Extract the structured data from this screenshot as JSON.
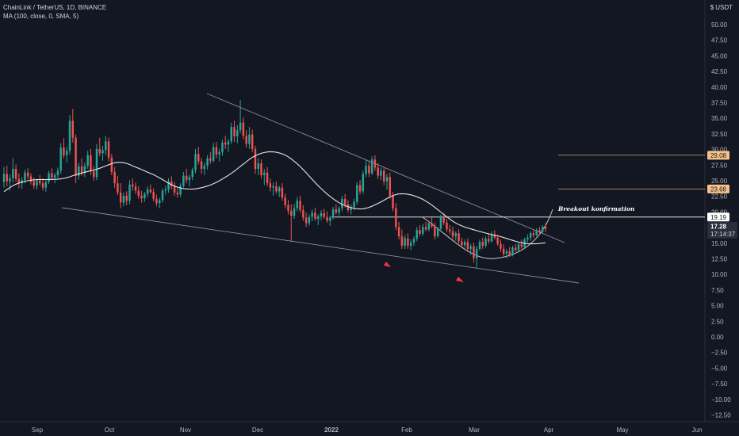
{
  "header": {
    "symbol_line": "ChainLink / TetherUS, 1D, BINANCE",
    "indicator_line": "MA (100, close, 0, SMA, 5)",
    "currency_label": "USDT",
    "currency_prefix": "$"
  },
  "chart_data": {
    "type": "candlestick",
    "price_axis_ticks": [
      "50.00",
      "47.50",
      "45.00",
      "42.50",
      "40.00",
      "37.50",
      "35.00",
      "32.50",
      "30.00",
      "27.50",
      "25.00",
      "22.50",
      "20.00",
      "17.50",
      "15.00",
      "12.50",
      "10.00",
      "7.50",
      "5.00",
      "2.50",
      "0.00",
      "−2.50",
      "−5.00",
      "−7.50",
      "−10.00",
      "−12.50"
    ],
    "ylim": [
      -13.5,
      53.5
    ],
    "time_axis_labels": [
      "Sep",
      "Oct",
      "Nov",
      "Dec",
      "2022",
      "Feb",
      "Mar",
      "Apr",
      "May",
      "Jun"
    ],
    "price_tags": [
      {
        "label": "29.08",
        "value": 29.08,
        "style": "orange"
      },
      {
        "label": "23.68",
        "value": 23.68,
        "style": "orange"
      },
      {
        "label": "19.19",
        "value": 19.19,
        "style": "white"
      }
    ],
    "last_price": {
      "label": "17.28",
      "countdown": "17:14:37",
      "value": 17.28
    },
    "annotation": "Breakout konfirmation",
    "candles_ohlc": [
      [
        24.8,
        27.2,
        23.9,
        26.1
      ],
      [
        26.1,
        27.4,
        24.1,
        24.9
      ],
      [
        24.9,
        26.0,
        23.4,
        25.4
      ],
      [
        25.4,
        28.6,
        24.7,
        26.9
      ],
      [
        26.9,
        27.6,
        24.9,
        25.3
      ],
      [
        25.3,
        26.2,
        23.8,
        24.6
      ],
      [
        24.6,
        25.6,
        23.7,
        25.1
      ],
      [
        25.1,
        26.8,
        24.6,
        26.3
      ],
      [
        26.3,
        27.0,
        25.2,
        25.7
      ],
      [
        25.7,
        26.2,
        24.4,
        24.9
      ],
      [
        24.9,
        25.5,
        23.7,
        24.2
      ],
      [
        24.2,
        25.3,
        23.6,
        25.0
      ],
      [
        25.0,
        25.9,
        24.2,
        24.6
      ],
      [
        24.6,
        25.4,
        23.4,
        23.9
      ],
      [
        23.9,
        25.1,
        23.2,
        24.8
      ],
      [
        24.8,
        26.6,
        24.5,
        26.2
      ],
      [
        26.2,
        27.0,
        25.1,
        25.5
      ],
      [
        25.5,
        26.3,
        24.6,
        25.9
      ],
      [
        25.9,
        27.1,
        25.4,
        26.6
      ],
      [
        26.6,
        31.0,
        26.1,
        30.3
      ],
      [
        30.3,
        31.8,
        28.6,
        29.1
      ],
      [
        29.1,
        30.4,
        27.9,
        29.8
      ],
      [
        29.8,
        35.5,
        29.2,
        34.6
      ],
      [
        34.6,
        36.5,
        31.1,
        31.9
      ],
      [
        31.9,
        32.4,
        24.6,
        25.8
      ],
      [
        25.8,
        27.9,
        25.2,
        27.3
      ],
      [
        27.3,
        28.6,
        25.8,
        26.3
      ],
      [
        26.3,
        27.9,
        25.6,
        27.4
      ],
      [
        27.4,
        29.8,
        26.9,
        29.1
      ],
      [
        29.1,
        30.1,
        25.9,
        26.5
      ],
      [
        26.5,
        27.4,
        25.0,
        25.6
      ],
      [
        25.6,
        30.9,
        25.1,
        30.1
      ],
      [
        30.1,
        31.9,
        28.9,
        29.4
      ],
      [
        29.4,
        30.6,
        28.2,
        29.9
      ],
      [
        29.9,
        32.2,
        29.1,
        31.3
      ],
      [
        31.3,
        31.9,
        28.1,
        28.7
      ],
      [
        28.7,
        29.3,
        25.9,
        26.4
      ],
      [
        26.4,
        27.2,
        23.9,
        24.6
      ],
      [
        24.6,
        25.8,
        22.7,
        23.1
      ],
      [
        23.1,
        24.6,
        20.6,
        21.5
      ],
      [
        21.5,
        23.1,
        20.9,
        22.6
      ],
      [
        22.6,
        23.3,
        21.1,
        21.8
      ],
      [
        21.8,
        25.1,
        21.2,
        24.4
      ],
      [
        24.4,
        25.4,
        23.4,
        24.1
      ],
      [
        24.1,
        24.7,
        22.9,
        23.4
      ],
      [
        23.4,
        24.1,
        22.1,
        22.6
      ],
      [
        22.6,
        23.4,
        21.5,
        22.2
      ],
      [
        22.2,
        23.2,
        21.6,
        22.9
      ],
      [
        22.9,
        24.1,
        22.4,
        23.6
      ],
      [
        23.6,
        24.4,
        22.9,
        23.2
      ],
      [
        23.2,
        23.8,
        21.7,
        22.1
      ],
      [
        22.1,
        22.8,
        20.9,
        21.4
      ],
      [
        21.4,
        22.3,
        20.6,
        21.9
      ],
      [
        21.9,
        23.8,
        21.5,
        23.4
      ],
      [
        23.4,
        24.2,
        22.8,
        23.6
      ],
      [
        23.6,
        25.4,
        23.1,
        24.9
      ],
      [
        24.9,
        25.7,
        23.6,
        24.1
      ],
      [
        24.1,
        24.8,
        22.6,
        23.1
      ],
      [
        23.1,
        23.8,
        22.3,
        22.8
      ],
      [
        22.8,
        24.6,
        22.4,
        24.2
      ],
      [
        24.2,
        26.4,
        23.9,
        25.8
      ],
      [
        25.8,
        26.9,
        24.6,
        25.1
      ],
      [
        25.1,
        26.0,
        24.1,
        25.6
      ],
      [
        25.6,
        27.1,
        25.1,
        26.7
      ],
      [
        26.7,
        30.1,
        26.2,
        29.3
      ],
      [
        29.3,
        30.4,
        27.6,
        28.1
      ],
      [
        28.1,
        28.6,
        26.1,
        26.9
      ],
      [
        26.9,
        27.9,
        25.9,
        27.4
      ],
      [
        27.4,
        29.1,
        26.8,
        28.6
      ],
      [
        28.6,
        29.6,
        27.7,
        28.2
      ],
      [
        28.2,
        31.1,
        27.9,
        30.4
      ],
      [
        30.4,
        31.2,
        28.6,
        29.2
      ],
      [
        29.2,
        30.1,
        28.1,
        29.6
      ],
      [
        29.6,
        31.6,
        29.0,
        31.1
      ],
      [
        31.1,
        32.2,
        30.1,
        30.8
      ],
      [
        30.8,
        31.7,
        29.6,
        31.3
      ],
      [
        31.3,
        34.3,
        30.9,
        33.6
      ],
      [
        33.6,
        34.6,
        31.2,
        32.1
      ],
      [
        32.1,
        33.9,
        31.0,
        33.1
      ],
      [
        33.1,
        37.9,
        32.6,
        34.3
      ],
      [
        34.3,
        35.1,
        31.6,
        32.2
      ],
      [
        32.2,
        33.1,
        30.3,
        30.9
      ],
      [
        30.9,
        33.6,
        30.1,
        32.4
      ],
      [
        32.4,
        33.2,
        29.6,
        30.1
      ],
      [
        30.1,
        30.6,
        26.1,
        26.9
      ],
      [
        26.9,
        28.6,
        25.9,
        27.8
      ],
      [
        27.8,
        28.4,
        25.4,
        25.9
      ],
      [
        25.9,
        26.9,
        24.3,
        26.3
      ],
      [
        26.3,
        27.2,
        24.1,
        24.6
      ],
      [
        24.6,
        25.4,
        23.3,
        23.9
      ],
      [
        23.9,
        24.7,
        22.6,
        24.1
      ],
      [
        24.1,
        24.9,
        22.9,
        23.3
      ],
      [
        23.3,
        24.2,
        22.4,
        23.9
      ],
      [
        23.9,
        24.6,
        21.8,
        22.3
      ],
      [
        22.3,
        22.9,
        20.6,
        21.1
      ],
      [
        21.1,
        21.9,
        19.6,
        20.2
      ],
      [
        20.2,
        21.2,
        15.2,
        19.4
      ],
      [
        19.4,
        21.3,
        18.9,
        20.6
      ],
      [
        20.6,
        22.4,
        20.1,
        21.8
      ],
      [
        21.8,
        22.6,
        19.9,
        20.3
      ],
      [
        20.3,
        21.1,
        18.6,
        19.1
      ],
      [
        19.1,
        19.9,
        17.6,
        18.2
      ],
      [
        18.2,
        19.6,
        17.8,
        19.2
      ],
      [
        19.2,
        20.4,
        18.5,
        19.9
      ],
      [
        19.9,
        20.7,
        18.6,
        18.9
      ],
      [
        18.9,
        19.6,
        17.9,
        19.3
      ],
      [
        19.3,
        20.3,
        18.7,
        19.8
      ],
      [
        19.8,
        20.5,
        18.9,
        19.2
      ],
      [
        19.2,
        20.1,
        18.3,
        18.6
      ],
      [
        18.6,
        19.4,
        17.8,
        19.1
      ],
      [
        19.1,
        20.8,
        18.8,
        20.4
      ],
      [
        20.4,
        21.2,
        19.6,
        19.9
      ],
      [
        19.9,
        20.9,
        19.4,
        20.6
      ],
      [
        20.6,
        22.6,
        20.1,
        22.1
      ],
      [
        22.1,
        22.9,
        20.7,
        21.2
      ],
      [
        21.2,
        21.9,
        19.9,
        20.3
      ],
      [
        20.3,
        21.2,
        19.6,
        20.8
      ],
      [
        20.8,
        22.1,
        20.3,
        21.6
      ],
      [
        21.6,
        24.8,
        21.2,
        24.3
      ],
      [
        24.3,
        25.1,
        22.8,
        23.3
      ],
      [
        23.3,
        26.6,
        22.9,
        26.1
      ],
      [
        26.1,
        28.4,
        25.6,
        27.4
      ],
      [
        27.4,
        28.1,
        25.6,
        26.2
      ],
      [
        26.2,
        28.9,
        25.9,
        28.4
      ],
      [
        28.4,
        29.1,
        26.6,
        27.1
      ],
      [
        27.1,
        27.8,
        25.3,
        25.8
      ],
      [
        25.8,
        27.1,
        25.1,
        26.6
      ],
      [
        26.6,
        27.2,
        24.3,
        24.9
      ],
      [
        24.9,
        26.1,
        23.6,
        25.6
      ],
      [
        25.6,
        26.3,
        22.1,
        22.6
      ],
      [
        22.6,
        23.2,
        20.1,
        20.6
      ],
      [
        20.6,
        21.4,
        17.1,
        17.6
      ],
      [
        17.6,
        18.4,
        15.6,
        16.1
      ],
      [
        16.1,
        17.2,
        14.1,
        14.6
      ],
      [
        14.6,
        16.3,
        14.1,
        15.8
      ],
      [
        15.8,
        16.6,
        14.1,
        14.6
      ],
      [
        14.6,
        15.6,
        13.9,
        15.1
      ],
      [
        15.1,
        16.1,
        14.6,
        15.7
      ],
      [
        15.7,
        17.6,
        15.3,
        17.1
      ],
      [
        17.1,
        17.9,
        16.1,
        16.5
      ],
      [
        16.5,
        18.1,
        16.2,
        17.6
      ],
      [
        17.6,
        18.4,
        16.9,
        17.2
      ],
      [
        17.2,
        18.6,
        16.9,
        18.2
      ],
      [
        18.2,
        19.1,
        17.4,
        17.7
      ],
      [
        17.7,
        18.3,
        15.6,
        16.1
      ],
      [
        16.1,
        17.6,
        15.9,
        17.3
      ],
      [
        17.3,
        19.6,
        17.1,
        19.2
      ],
      [
        19.2,
        19.8,
        17.9,
        18.3
      ],
      [
        18.3,
        18.9,
        16.8,
        17.2
      ],
      [
        17.2,
        17.9,
        16.4,
        16.9
      ],
      [
        16.9,
        17.6,
        15.6,
        16.1
      ],
      [
        16.1,
        16.9,
        15.4,
        16.6
      ],
      [
        16.6,
        17.2,
        14.9,
        15.3
      ],
      [
        15.3,
        15.9,
        14.2,
        14.7
      ],
      [
        14.7,
        15.6,
        14.3,
        15.2
      ],
      [
        15.2,
        15.8,
        13.6,
        14.1
      ],
      [
        14.1,
        14.9,
        13.1,
        14.5
      ],
      [
        14.5,
        15.1,
        11.9,
        12.6
      ],
      [
        12.6,
        14.6,
        11.1,
        14.1
      ],
      [
        14.1,
        15.6,
        13.8,
        15.2
      ],
      [
        15.2,
        15.9,
        14.1,
        14.6
      ],
      [
        14.6,
        16.1,
        14.3,
        15.7
      ],
      [
        15.7,
        16.6,
        14.9,
        15.3
      ],
      [
        15.3,
        16.9,
        15.1,
        16.4
      ],
      [
        16.4,
        17.1,
        15.6,
        15.9
      ],
      [
        15.9,
        16.3,
        14.6,
        14.9
      ],
      [
        14.9,
        15.6,
        13.6,
        14.1
      ],
      [
        14.1,
        14.8,
        12.9,
        13.3
      ],
      [
        13.3,
        14.1,
        12.6,
        13.7
      ],
      [
        13.7,
        14.4,
        12.8,
        13.1
      ],
      [
        13.1,
        14.6,
        12.9,
        14.3
      ],
      [
        14.3,
        14.9,
        13.6,
        13.9
      ],
      [
        13.9,
        15.1,
        13.7,
        14.8
      ],
      [
        14.8,
        15.6,
        14.1,
        14.4
      ],
      [
        14.4,
        15.9,
        14.2,
        15.6
      ],
      [
        15.6,
        16.4,
        15.1,
        15.9
      ],
      [
        15.9,
        16.9,
        15.4,
        16.6
      ],
      [
        16.6,
        17.1,
        15.9,
        16.3
      ],
      [
        16.3,
        17.4,
        16.1,
        17.1
      ],
      [
        17.1,
        17.6,
        16.3,
        16.8
      ],
      [
        16.8,
        17.9,
        16.5,
        17.6
      ],
      [
        17.6,
        18.2,
        16.8,
        17.28
      ]
    ]
  },
  "colors": {
    "background": "#131722",
    "up": "#26a69a",
    "down": "#ef5350",
    "ma": "#e6e6e6",
    "trendline": "#8a8e99",
    "hline": "#ffffff",
    "orange_tag": "#f7c28a",
    "arrow": "#f23645"
  }
}
